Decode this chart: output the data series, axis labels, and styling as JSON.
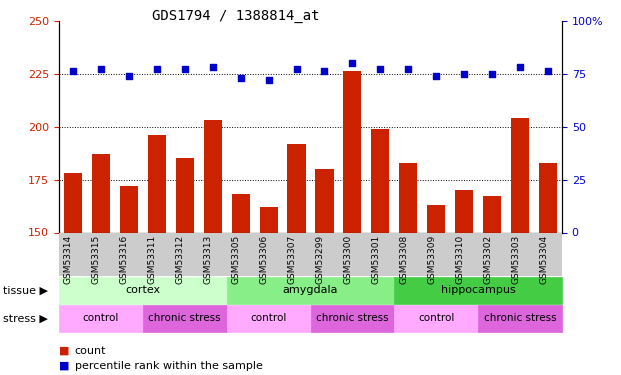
{
  "title": "GDS1794 / 1388814_at",
  "samples": [
    "GSM53314",
    "GSM53315",
    "GSM53316",
    "GSM53311",
    "GSM53312",
    "GSM53313",
    "GSM53305",
    "GSM53306",
    "GSM53307",
    "GSM53299",
    "GSM53300",
    "GSM53301",
    "GSM53308",
    "GSM53309",
    "GSM53310",
    "GSM53302",
    "GSM53303",
    "GSM53304"
  ],
  "counts": [
    178,
    187,
    172,
    196,
    185,
    203,
    168,
    162,
    192,
    180,
    226,
    199,
    183,
    163,
    170,
    167,
    204,
    183
  ],
  "percentiles": [
    76,
    77,
    74,
    77,
    77,
    78,
    73,
    72,
    77,
    76,
    80,
    77,
    77,
    74,
    75,
    75,
    78,
    76
  ],
  "ylim_left": [
    150,
    250
  ],
  "ylim_right": [
    0,
    100
  ],
  "yticks_left": [
    150,
    175,
    200,
    225,
    250
  ],
  "yticks_right": [
    0,
    25,
    50,
    75,
    100
  ],
  "bar_color": "#cc2200",
  "dot_color": "#0000cc",
  "grid_color": "#000000",
  "tissue_groups": [
    {
      "label": "cortex",
      "start": 0,
      "end": 6,
      "color": "#ccffcc"
    },
    {
      "label": "amygdala",
      "start": 6,
      "end": 12,
      "color": "#88ee88"
    },
    {
      "label": "hippocampus",
      "start": 12,
      "end": 18,
      "color": "#44cc44"
    }
  ],
  "stress_groups": [
    {
      "label": "control",
      "start": 0,
      "end": 3,
      "color": "#ffaaff"
    },
    {
      "label": "chronic stress",
      "start": 3,
      "end": 6,
      "color": "#dd66dd"
    },
    {
      "label": "control",
      "start": 6,
      "end": 9,
      "color": "#ffaaff"
    },
    {
      "label": "chronic stress",
      "start": 9,
      "end": 12,
      "color": "#dd66dd"
    },
    {
      "label": "control",
      "start": 12,
      "end": 15,
      "color": "#ffaaff"
    },
    {
      "label": "chronic stress",
      "start": 15,
      "end": 18,
      "color": "#dd66dd"
    }
  ],
  "legend_count_color": "#cc2200",
  "legend_pct_color": "#0000cc",
  "tick_label_color_left": "#cc2200",
  "tick_label_color_right": "#0000cc",
  "tissue_label": "tissue",
  "stress_label": "stress",
  "xlabel_bg": "#cccccc"
}
